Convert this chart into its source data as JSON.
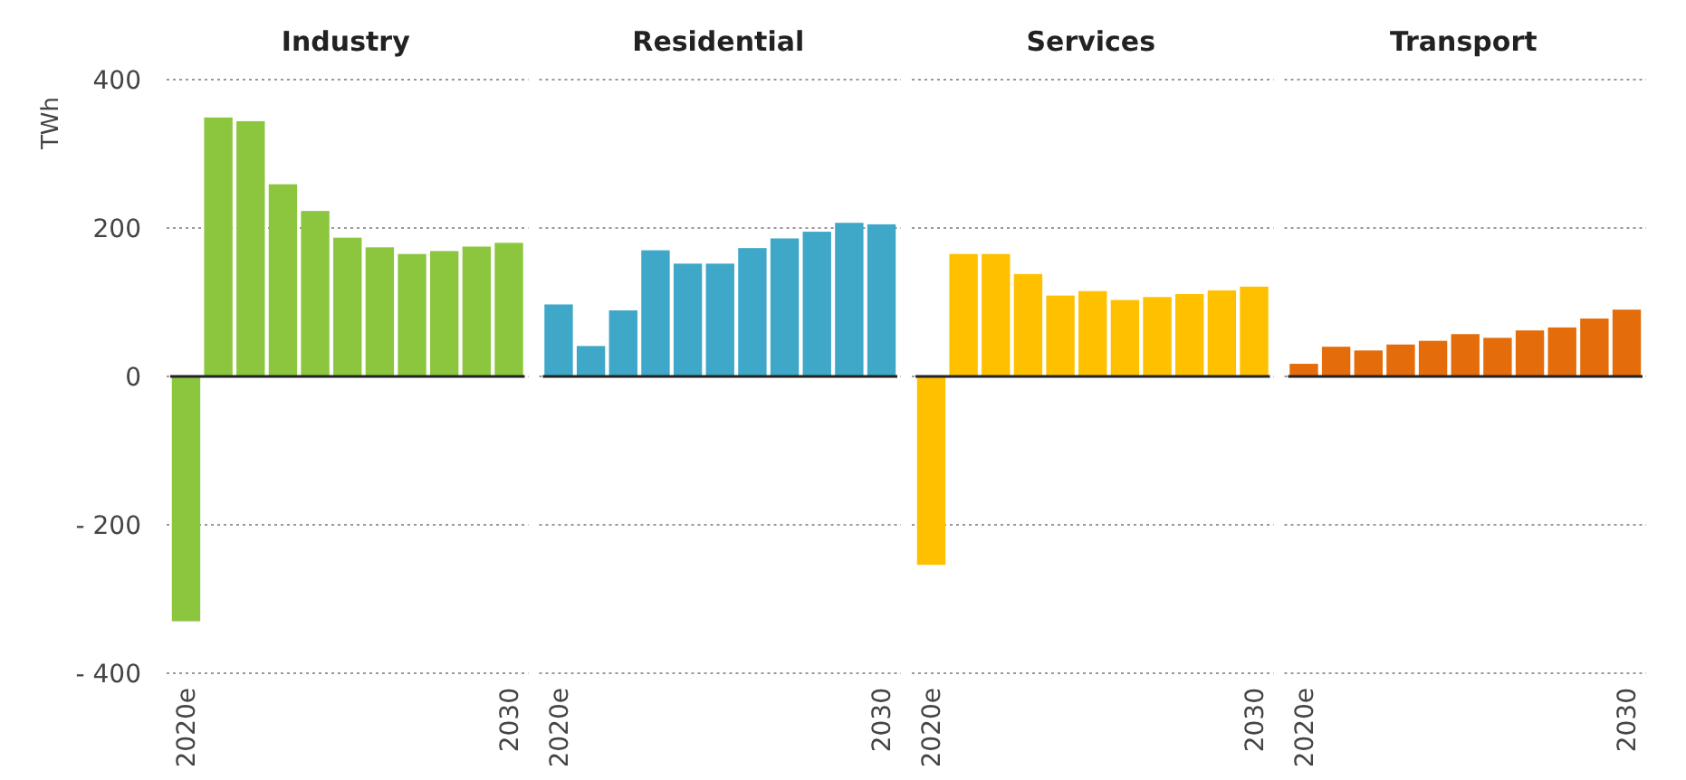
{
  "chart_data": [
    {
      "type": "bar",
      "title": "Industry",
      "ylabel": "TWh",
      "categories": [
        "2020e",
        null,
        null,
        null,
        null,
        null,
        null,
        null,
        null,
        null,
        "2030"
      ],
      "values": [
        -330,
        349,
        344,
        259,
        223,
        187,
        174,
        165,
        169,
        175,
        180
      ],
      "color": "#8cc63f",
      "ylim": [
        -400,
        400
      ],
      "yticks": [
        {
          "value": -400,
          "label": "- 400"
        },
        {
          "value": -200,
          "label": "- 200"
        },
        0,
        200,
        400
      ],
      "grid": "y"
    },
    {
      "type": "bar",
      "title": "Residential",
      "categories": [
        "2020e",
        null,
        null,
        null,
        null,
        null,
        null,
        null,
        null,
        null,
        "2030"
      ],
      "values": [
        97,
        41,
        89,
        170,
        152,
        152,
        173,
        186,
        195,
        207,
        205
      ],
      "color": "#3fa7c7",
      "ylim": [
        -400,
        400
      ],
      "yticks": [
        {
          "value": -400,
          "label": null
        },
        {
          "value": -200,
          "label": null
        },
        {
          "value": 0,
          "label": null
        },
        {
          "value": 200,
          "label": null
        },
        {
          "value": 400,
          "label": null
        }
      ],
      "grid": "y",
      "tick_labels": "x"
    },
    {
      "type": "bar",
      "title": "Services",
      "categories": [
        "2020e",
        null,
        null,
        null,
        null,
        null,
        null,
        null,
        null,
        null,
        "2030"
      ],
      "values": [
        -254,
        165,
        165,
        138,
        109,
        115,
        103,
        107,
        111,
        116,
        121
      ],
      "color": "#ffc000",
      "ylim": [
        -400,
        400
      ],
      "yticks": [
        {
          "value": -400,
          "label": null
        },
        {
          "value": -200,
          "label": null
        },
        {
          "value": 0,
          "label": null
        },
        {
          "value": 200,
          "label": null
        },
        {
          "value": 400,
          "label": null
        }
      ],
      "grid": "y",
      "tick_labels": "x"
    },
    {
      "type": "bar",
      "title": "Transport",
      "categories": [
        "2020e",
        null,
        null,
        null,
        null,
        null,
        null,
        null,
        null,
        null,
        "2030"
      ],
      "values": [
        17,
        40,
        35,
        43,
        48,
        57,
        52,
        62,
        66,
        78,
        90
      ],
      "color": "#e46c0a",
      "ylim": [
        -400,
        400
      ],
      "yticks": [
        {
          "value": -400,
          "label": null
        },
        {
          "value": -200,
          "label": null
        },
        {
          "value": 0,
          "label": null
        },
        {
          "value": 200,
          "label": null
        },
        {
          "value": 400,
          "label": null
        }
      ],
      "grid": "y",
      "tick_labels": "x"
    }
  ]
}
